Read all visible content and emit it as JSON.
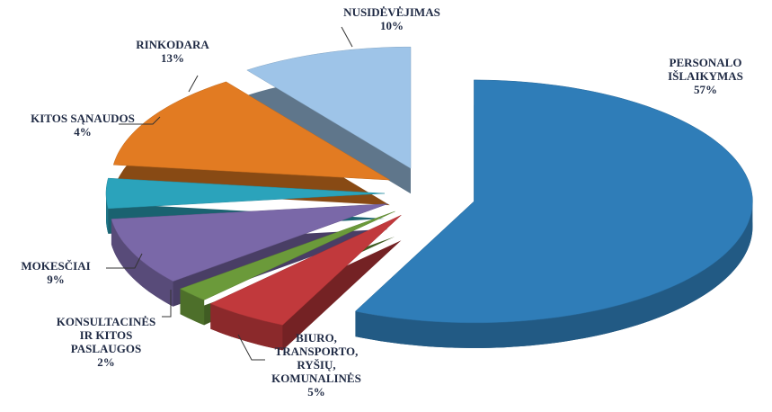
{
  "chart_data": {
    "type": "pie",
    "categories": [
      "PERSONALO\nIŠLAIKYMAS",
      "BIURO,\nTRANSPORTO,\nRYŠIŲ,\nKOMUNALINĖS",
      "KONSULTACINĖS\nIR KITOS\nPASLAUGOS",
      "MOKESČIAI",
      "KITOS SĄNAUDOS",
      "RINKODARA",
      "NUSIDĖVĖJIMAS"
    ],
    "values": [
      57,
      5,
      2,
      9,
      4,
      13,
      10
    ],
    "value_labels": [
      "57%",
      "5%",
      "2%",
      "9%",
      "4%",
      "13%",
      "10%"
    ],
    "colors": [
      "#2f7db8",
      "#c1393c",
      "#6b9a3a",
      "#7a68a8",
      "#2ba3bb",
      "#e27b22",
      "#9ec4e8"
    ]
  }
}
